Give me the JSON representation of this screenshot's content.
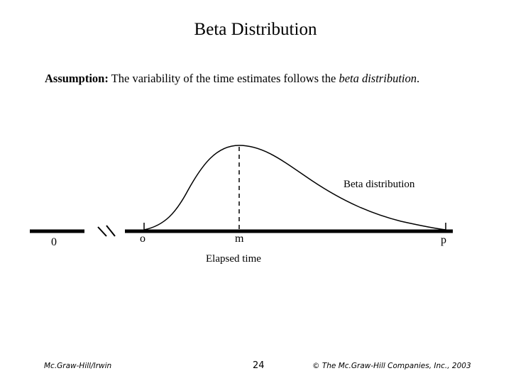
{
  "slide": {
    "title": "Beta Distribution",
    "assumption": {
      "lead": "Assumption:",
      "text_before": " The variability of the time estimates follows the ",
      "emphasis": "beta distribution",
      "text_after": "."
    }
  },
  "diagram": {
    "curve_label": "Beta distribution",
    "axis_label": "Elapsed time",
    "tick_labels": {
      "zero": "0",
      "optimistic": "o",
      "most_likely": "m",
      "pessimistic": "p"
    }
  },
  "footer": {
    "publisher": "Mc.Graw-Hill/Irwin",
    "page_number": "24",
    "copyright": "© The Mc.Graw-Hill Companies, Inc., 2003"
  }
}
